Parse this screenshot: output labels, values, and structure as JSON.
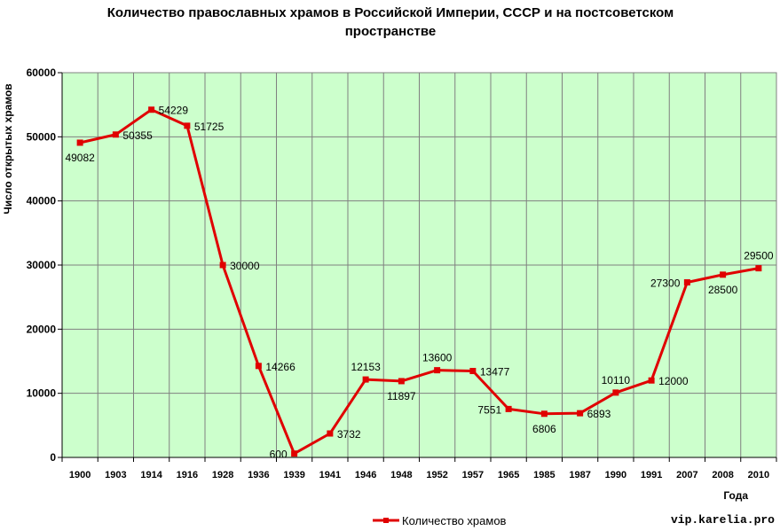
{
  "chart_data": {
    "type": "line",
    "title": "Количество православных храмов в Российской Империи, СССР и на постсоветском пространстве",
    "xlabel": "Года",
    "ylabel": "Число открытых храмов",
    "categories": [
      "1900",
      "1903",
      "1914",
      "1916",
      "1928",
      "1936",
      "1939",
      "1941",
      "1946",
      "1948",
      "1952",
      "1957",
      "1965",
      "1985",
      "1987",
      "1990",
      "1991",
      "2007",
      "2008",
      "2010"
    ],
    "series": [
      {
        "name": "Количество храмов",
        "values": [
          49082,
          50355,
          54229,
          51725,
          30000,
          14266,
          600,
          3732,
          12153,
          11897,
          13600,
          13477,
          7551,
          6806,
          6893,
          10110,
          12000,
          27300,
          28500,
          29500
        ]
      }
    ],
    "ylim": [
      0,
      60000
    ],
    "yticks": [
      "0",
      "10000",
      "20000",
      "30000",
      "40000",
      "50000",
      "60000"
    ],
    "grid": true,
    "legend": "bottom",
    "line_color": "#e00000",
    "plot_background": "#ccffcc"
  },
  "credit": "vip.karelia.pro"
}
